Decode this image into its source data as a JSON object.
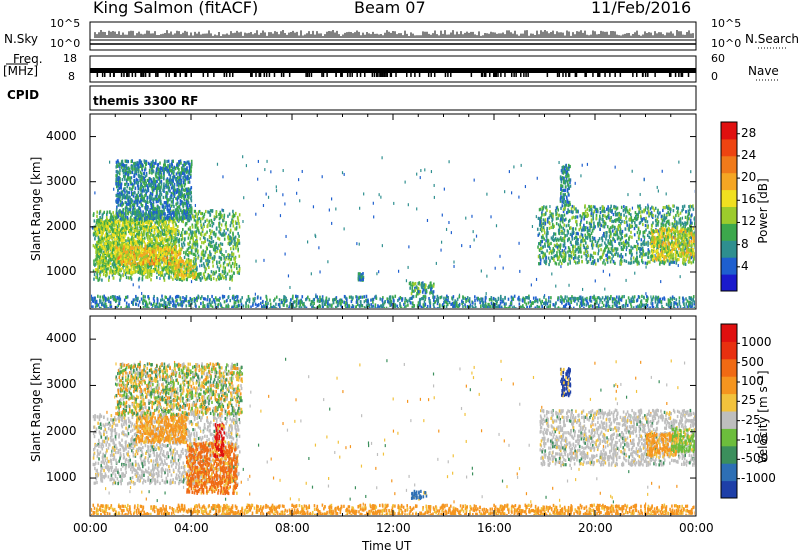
{
  "header": {
    "station": "King Salmon (fitACF)",
    "beam": "Beam 07",
    "date": "11/Feb/2016"
  },
  "strip_labels": {
    "nsky": "N.Sky",
    "nsky_top": "10^5",
    "nsky_bottom": "10^0",
    "nsearch": "N.Search",
    "nsearch_top": "10^5",
    "nsearch_bottom": "10^0",
    "freq_label": "Freq.",
    "freq_unit": "[MHz]",
    "freq_top": "18",
    "freq_bottom": "8",
    "nave": "Nave",
    "nave_top": "60",
    "nave_bottom": "0",
    "cpid": "CPID",
    "cpid_value": "themis 3300 RF"
  },
  "colors": {
    "frame": "#000000",
    "background": "#ffffff",
    "ground_scatter": "#bebebe"
  },
  "chart_data": [
    {
      "type": "heatmap",
      "panel": "power",
      "ylabel": "Slant Range [km]",
      "xlabel": "",
      "xlim": [
        "00:00",
        "24:00"
      ],
      "ylim": [
        180,
        4500
      ],
      "yticks": [
        1000,
        2000,
        3000,
        4000
      ],
      "colorbar_label": "Power [dB]",
      "colorbar_ticks": [
        "4",
        "8",
        "12",
        "16",
        "20",
        "24",
        "28"
      ],
      "colorbar_colors": [
        "#1a1acc",
        "#1e5fcf",
        "#2e8f8f",
        "#3ca84c",
        "#9ccb2c",
        "#f0e020",
        "#f5a623",
        "#f07a1a",
        "#ee4411",
        "#e01010"
      ],
      "regions": [
        {
          "t0": 0.1,
          "t1": 5.9,
          "r0": 850,
          "r1": 2400,
          "level": 9
        },
        {
          "t0": 0.2,
          "t1": 3.4,
          "r0": 1000,
          "r1": 2200,
          "level": 12
        },
        {
          "t0": 1.0,
          "t1": 3.6,
          "r0": 1200,
          "r1": 1600,
          "level": 16
        },
        {
          "t0": 3.3,
          "t1": 4.2,
          "r0": 900,
          "r1": 1300,
          "level": 14
        },
        {
          "t0": 1.0,
          "t1": 4.0,
          "r0": 2200,
          "r1": 3500,
          "level": 6
        },
        {
          "t0": 17.7,
          "t1": 24.0,
          "r0": 1200,
          "r1": 2500,
          "level": 8
        },
        {
          "t0": 22.2,
          "t1": 23.9,
          "r0": 1300,
          "r1": 2000,
          "level": 14
        },
        {
          "t0": 18.6,
          "t1": 19.0,
          "r0": 2500,
          "r1": 3400,
          "level": 6
        },
        {
          "t0": 12.6,
          "t1": 13.6,
          "r0": 550,
          "r1": 800,
          "level": 8
        },
        {
          "t0": 0.0,
          "t1": 24.0,
          "r0": 200,
          "r1": 500,
          "level": 6
        },
        {
          "t0": 10.6,
          "t1": 10.8,
          "r0": 850,
          "r1": 1000,
          "level": 6
        }
      ]
    },
    {
      "type": "heatmap",
      "panel": "velocity",
      "ylabel": "Slant Range [km]",
      "xlabel": "Time UT",
      "xlim": [
        "00:00",
        "24:00"
      ],
      "xticks": [
        "00:00",
        "04:00",
        "08:00",
        "12:00",
        "16:00",
        "20:00",
        "00:00"
      ],
      "ylim": [
        180,
        4500
      ],
      "yticks": [
        1000,
        2000,
        3000,
        4000
      ],
      "colorbar_label": "Velocity [m s⁻¹]",
      "colorbar_ticks": [
        "1000",
        "500",
        "100",
        "25",
        "-25",
        "-100",
        "-500",
        "-1000"
      ],
      "colorbar_colors": [
        "#1e3fa8",
        "#2d6fb5",
        "#3b8f5c",
        "#6cbd3c",
        "#bebebe",
        "#f2c23c",
        "#f5951f",
        "#f06a14",
        "#e83010",
        "#e01010"
      ],
      "regions": [
        {
          "t0": 0.1,
          "t1": 5.9,
          "r0": 900,
          "r1": 2400,
          "class": "ground"
        },
        {
          "t0": 1.8,
          "t1": 3.8,
          "r0": 1800,
          "r1": 2400,
          "class": "-100"
        },
        {
          "t0": 3.8,
          "t1": 5.8,
          "r0": 700,
          "r1": 1800,
          "class": "-500"
        },
        {
          "t0": 4.9,
          "t1": 5.3,
          "r0": 1500,
          "r1": 2200,
          "class": "-1000"
        },
        {
          "t0": 17.8,
          "t1": 24.0,
          "r0": 1300,
          "r1": 2500,
          "class": "ground"
        },
        {
          "t0": 22.0,
          "t1": 23.2,
          "r0": 1500,
          "r1": 2000,
          "class": "-100"
        },
        {
          "t0": 23.0,
          "t1": 24.0,
          "r0": 1600,
          "r1": 2100,
          "class": "100"
        },
        {
          "t0": 18.6,
          "t1": 19.0,
          "r0": 2800,
          "r1": 3400,
          "class": "1000"
        },
        {
          "t0": 12.7,
          "t1": 13.3,
          "r0": 580,
          "r1": 750,
          "class": "500"
        },
        {
          "t0": 0.0,
          "t1": 24.0,
          "r0": 200,
          "r1": 450,
          "class": "-100"
        },
        {
          "t0": 1.0,
          "t1": 6.0,
          "r0": 2400,
          "r1": 3500,
          "class": "mixed"
        }
      ]
    }
  ]
}
